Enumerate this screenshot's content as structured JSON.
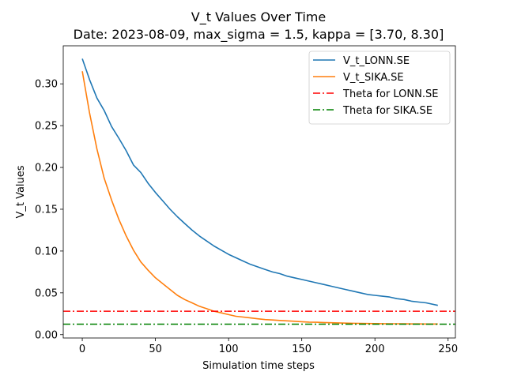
{
  "chart_data": {
    "type": "line",
    "title": "V_t Values Over Time",
    "subtitle": "Date: 2023-08-09, max_sigma = 1.5, kappa = [3.70, 8.30]",
    "xlabel": "Simulation time steps",
    "ylabel": "V_t Values",
    "xlim": [
      -13,
      255
    ],
    "ylim": [
      -0.004,
      0.3455
    ],
    "xticks": [
      0,
      50,
      100,
      150,
      200,
      250
    ],
    "xtick_labels": [
      "0",
      "50",
      "100",
      "150",
      "200",
      "250"
    ],
    "yticks": [
      0.0,
      0.05,
      0.1,
      0.15,
      0.2,
      0.25,
      0.3
    ],
    "ytick_labels": [
      "0.00",
      "0.05",
      "0.10",
      "0.15",
      "0.20",
      "0.25",
      "0.30"
    ],
    "grid": false,
    "legend_position": "top-right",
    "series": [
      {
        "name": "V_t_LONN.SE",
        "color": "#1f77b4",
        "style": "solid",
        "x": [
          0,
          5,
          10,
          15,
          20,
          25,
          30,
          35,
          40,
          45,
          50,
          55,
          60,
          65,
          70,
          75,
          80,
          85,
          90,
          95,
          100,
          105,
          110,
          115,
          120,
          125,
          130,
          135,
          140,
          145,
          150,
          155,
          160,
          165,
          170,
          175,
          180,
          185,
          190,
          195,
          200,
          205,
          210,
          215,
          220,
          225,
          230,
          235,
          243
        ],
        "y": [
          0.33,
          0.305,
          0.283,
          0.268,
          0.249,
          0.235,
          0.22,
          0.203,
          0.194,
          0.181,
          0.17,
          0.16,
          0.15,
          0.141,
          0.133,
          0.125,
          0.118,
          0.112,
          0.106,
          0.101,
          0.096,
          0.092,
          0.088,
          0.084,
          0.081,
          0.078,
          0.075,
          0.073,
          0.07,
          0.068,
          0.066,
          0.064,
          0.062,
          0.06,
          0.058,
          0.056,
          0.054,
          0.052,
          0.05,
          0.048,
          0.047,
          0.046,
          0.045,
          0.043,
          0.042,
          0.04,
          0.039,
          0.038,
          0.035
        ]
      },
      {
        "name": "V_t_SIKA.SE",
        "color": "#ff7f0e",
        "style": "solid",
        "x": [
          0,
          5,
          10,
          15,
          20,
          25,
          30,
          35,
          40,
          45,
          50,
          55,
          60,
          65,
          70,
          75,
          80,
          85,
          90,
          95,
          100,
          105,
          110,
          115,
          120,
          125,
          130,
          135,
          140,
          145,
          150,
          155,
          160,
          165,
          170,
          175,
          180,
          185,
          190,
          195,
          200,
          205,
          210,
          215,
          220,
          225,
          230,
          235,
          243
        ],
        "y": [
          0.315,
          0.265,
          0.222,
          0.187,
          0.161,
          0.138,
          0.118,
          0.101,
          0.087,
          0.077,
          0.068,
          0.061,
          0.054,
          0.047,
          0.042,
          0.038,
          0.034,
          0.031,
          0.028,
          0.026,
          0.024,
          0.022,
          0.021,
          0.02,
          0.019,
          0.018,
          0.0175,
          0.017,
          0.0165,
          0.016,
          0.0155,
          0.015,
          0.0148,
          0.0145,
          0.0142,
          0.014,
          0.0138,
          0.0136,
          0.0135,
          0.0133,
          0.0132,
          0.0131,
          0.013,
          0.013,
          0.0129,
          0.0128,
          0.0128,
          0.0127,
          0.0127
        ]
      },
      {
        "name": "Theta for LONN.SE",
        "color": "#ff0000",
        "style": "dashdot",
        "hline": 0.028
      },
      {
        "name": "Theta for SIKA.SE",
        "color": "#008000",
        "style": "dashdot",
        "hline": 0.0125
      }
    ]
  }
}
